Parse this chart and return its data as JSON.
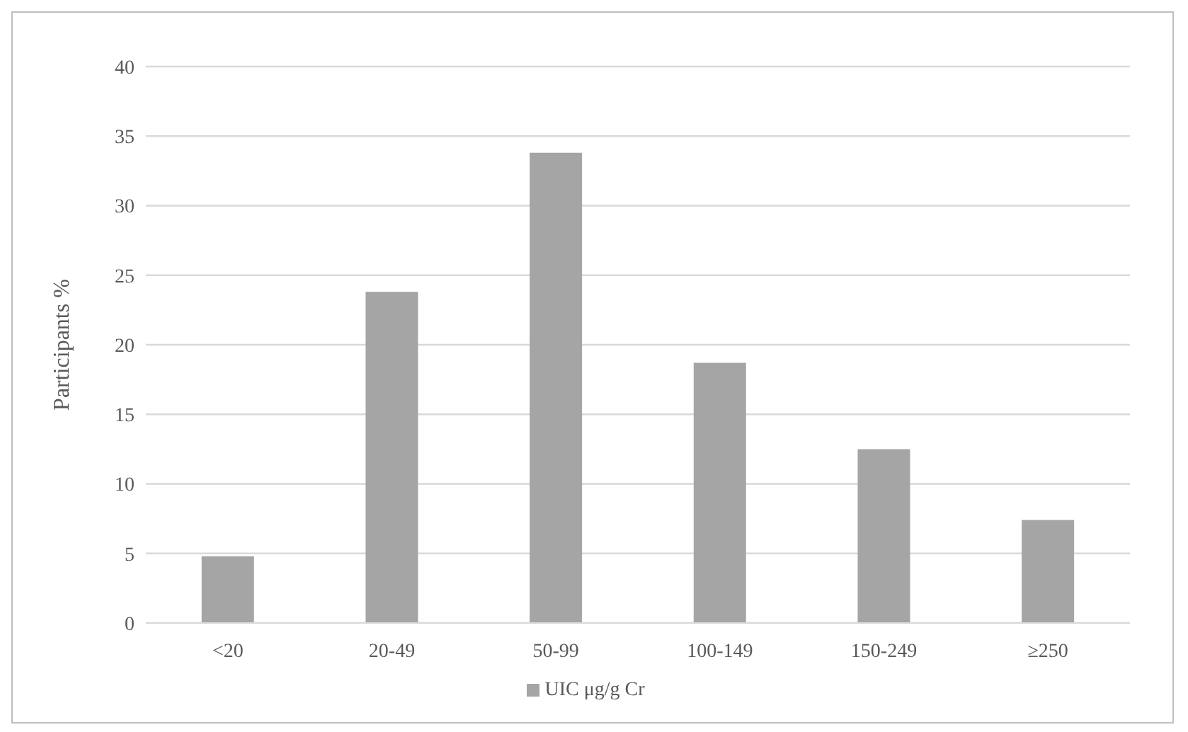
{
  "chart_data": {
    "type": "bar",
    "ylabel": "Participants %",
    "categories": [
      "<20",
      "20-49",
      "50-99",
      "100-149",
      "150-249",
      "≥250"
    ],
    "series": [
      {
        "name": "UIC μg/g Cr",
        "color": "#a5a5a5",
        "values": [
          4.8,
          23.8,
          33.8,
          18.7,
          12.5,
          7.4
        ]
      }
    ],
    "ylim": [
      0,
      40
    ],
    "yticks": [
      0,
      5,
      10,
      15,
      20,
      25,
      30,
      35,
      40
    ],
    "grid": "y",
    "legend": "bottom"
  }
}
